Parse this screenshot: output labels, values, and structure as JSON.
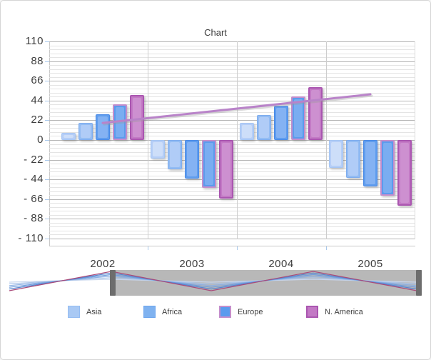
{
  "chart_data": {
    "type": "bar",
    "title": "Chart",
    "categories": [
      "2002",
      "2003",
      "2004",
      "2005"
    ],
    "series": [
      {
        "name": "Asia",
        "values": [
          8,
          -21,
          19,
          -31
        ],
        "fill": "#b5cef7",
        "inner_fill": "#cddef9",
        "border": "#a5c5f3",
        "border_width": 1
      },
      {
        "name": "Africa",
        "values": [
          19,
          -33,
          28,
          -42
        ],
        "fill": "#93bcf3",
        "inner_fill": "#b0ccf7",
        "border": "#7fadee",
        "border_width": 1
      },
      {
        "name": "",
        "values": [
          29,
          -43,
          38,
          -52
        ],
        "fill": "#5f9dee",
        "inner_fill": "#84b2f3",
        "border": "#4a8ae6",
        "border_width": 1
      },
      {
        "name": "Europe",
        "values": [
          40,
          -53,
          49,
          -62
        ],
        "fill": "#5b9bed",
        "inner_fill": "#7aadf1",
        "border": "#c48ecc",
        "border_width": 2
      },
      {
        "name": "N. America",
        "values": [
          50,
          -65,
          59,
          -73
        ],
        "fill": "#c379c5",
        "inner_fill": "#cd90d0",
        "border": "#aa56b0",
        "border_width": 2
      }
    ],
    "trendline": {
      "color": "#b983c9",
      "start_category": "2002",
      "start_value": 19,
      "end_category": "2005",
      "end_value": 51
    },
    "y_axis": {
      "min": -110,
      "max": 110,
      "major_step": 22,
      "tick_labels": [
        "110",
        "88",
        "66",
        "44",
        "22",
        "0",
        "- 22",
        "- 44",
        "- 66",
        "- 88",
        "- 110"
      ]
    },
    "legend_position": "bottom",
    "grid": "on"
  },
  "legend": {
    "items": [
      {
        "label": "Asia",
        "fill": "#a9c9f4",
        "border": "#94bcf2",
        "border_width": 1
      },
      {
        "label": "Africa",
        "fill": "#7fb2f0",
        "border": "#6da5ee",
        "border_width": 1
      },
      {
        "label": "Europe",
        "fill": "#5a9bee",
        "border": "#c48ecc",
        "border_width": 2
      },
      {
        "label": "N. America",
        "fill": "#c379c5",
        "border": "#aa56b0",
        "border_width": 2
      }
    ]
  },
  "navigator": {
    "selected_fill": "#b8b8b8",
    "handle_color": "#6d6d6d",
    "line_colors": [
      "#c9d7ee",
      "#abc4e9",
      "#8db0e3",
      "#6f9cdd",
      "#5786cf",
      "#a94a79"
    ]
  },
  "colors": {
    "grid_major": "#b5b5b5",
    "grid_minor": "#e4e4e4",
    "axis": "#c9c9c9",
    "tick": "#a9c9ec",
    "text": "#3d3d3d",
    "frame_border": "#d5d5d5",
    "background": "#ffffff"
  }
}
